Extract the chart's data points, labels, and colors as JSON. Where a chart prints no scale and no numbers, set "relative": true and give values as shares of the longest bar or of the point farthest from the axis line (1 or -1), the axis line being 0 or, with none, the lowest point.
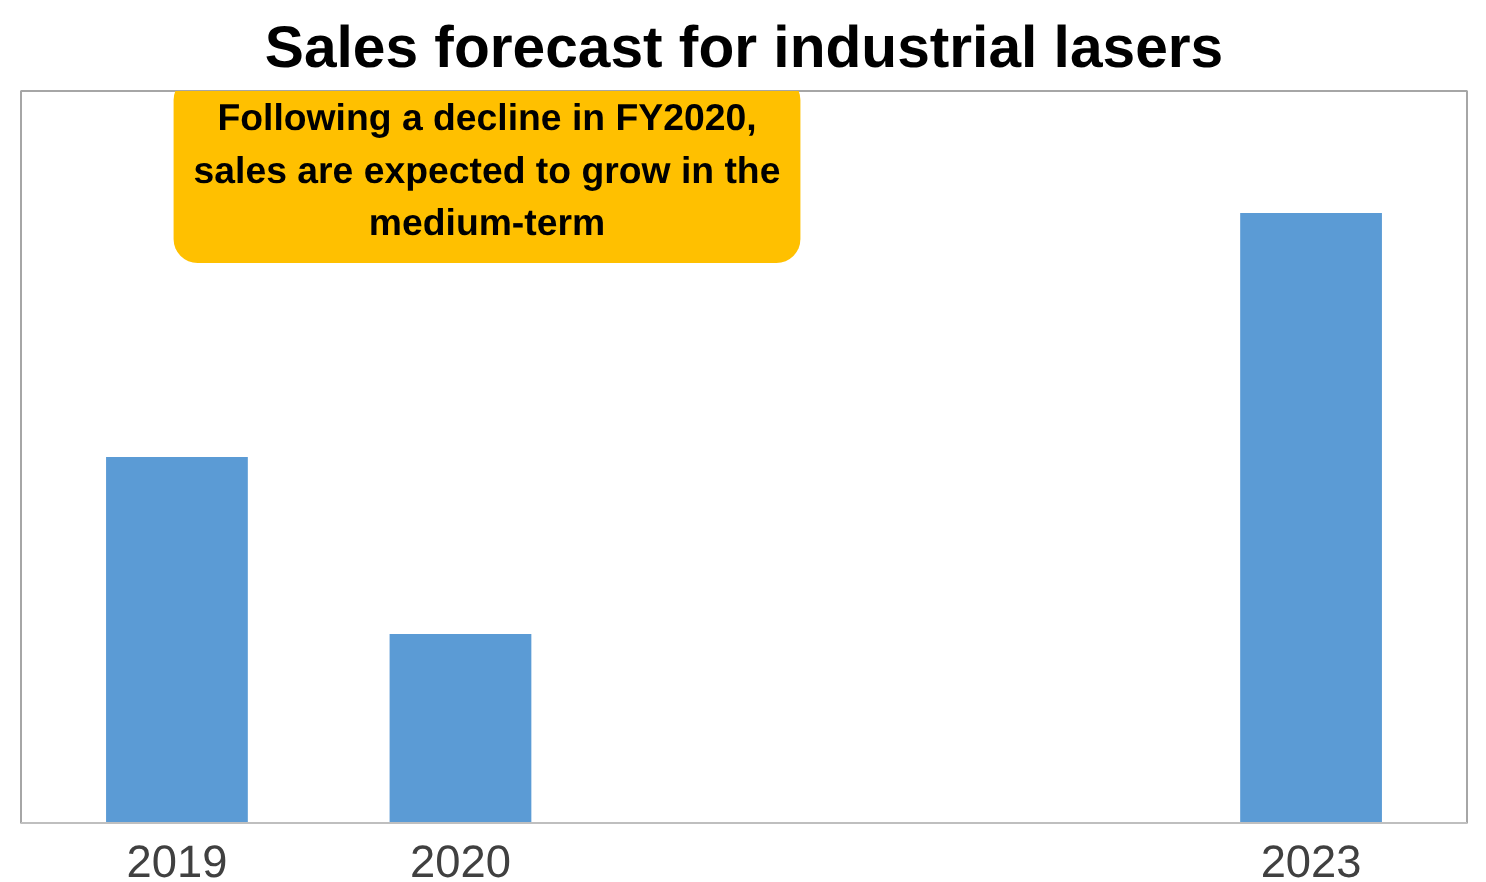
{
  "chart_data": {
    "type": "bar",
    "title": "Sales forecast for industrial lasers",
    "relative": true,
    "categories": [
      "2019",
      "2020",
      null,
      null,
      "2023"
    ],
    "values": [
      0.6,
      0.31,
      null,
      null,
      1
    ],
    "color": "#5b9bd5",
    "annotations": [
      "Following a decline in FY2020,\nsales are expected to grow in the\nmedium-term"
    ],
    "grid": false
  }
}
